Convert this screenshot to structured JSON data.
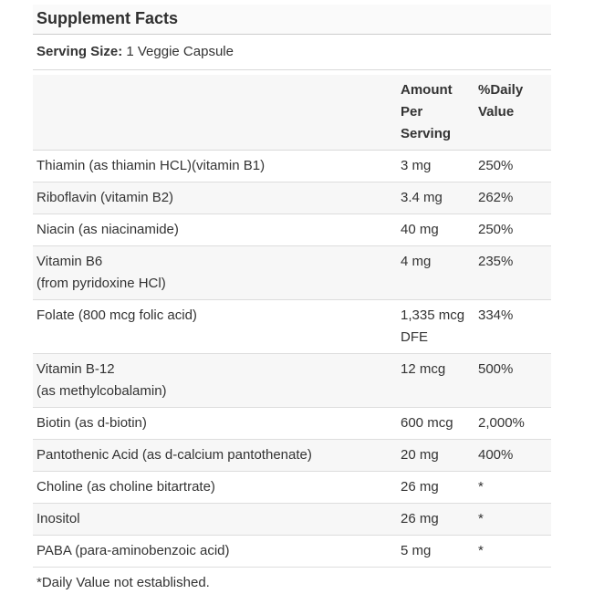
{
  "label": {
    "title": "Supplement Facts",
    "serving": {
      "label": "Serving Size:",
      "value": "1 Veggie Capsule"
    },
    "columns": {
      "amount": "Amount Per Serving",
      "daily_value": "%Daily Value"
    },
    "rows": [
      {
        "name": "Thiamin (as thiamin HCL)(vitamin B1)",
        "sub": "",
        "amount": "3 mg",
        "dv": "250%"
      },
      {
        "name": "Riboflavin (vitamin B2)",
        "sub": "",
        "amount": "3.4 mg",
        "dv": "262%"
      },
      {
        "name": "Niacin (as niacinamide)",
        "sub": "",
        "amount": "40 mg",
        "dv": "250%"
      },
      {
        "name": "Vitamin B6",
        "sub": "(from pyridoxine HCl)",
        "amount": "4 mg",
        "dv": "235%"
      },
      {
        "name": "Folate (800 mcg folic acid)",
        "sub": "",
        "amount": "1,335 mcg DFE",
        "dv": "334%"
      },
      {
        "name": "Vitamin B-12",
        "sub": "(as methylcobalamin)",
        "amount": "12 mcg",
        "dv": "500%"
      },
      {
        "name": "Biotin (as d-biotin)",
        "sub": "",
        "amount": "600 mcg",
        "dv": "2,000%"
      },
      {
        "name": "Pantothenic Acid (as d-calcium pantothenate)",
        "sub": "",
        "amount": "20 mg",
        "dv": "400%"
      },
      {
        "name": "Choline (as choline bitartrate)",
        "sub": "",
        "amount": "26 mg",
        "dv": "*"
      },
      {
        "name": "Inositol",
        "sub": "",
        "amount": "26 mg",
        "dv": "*"
      },
      {
        "name": "PABA (para-aminobenzoic acid)",
        "sub": "",
        "amount": "5 mg",
        "dv": "*"
      }
    ],
    "footnote": "*Daily Value not established.",
    "colors": {
      "text": "#333333",
      "title_bg": "#fafafa",
      "row_alt_bg": "#f7f7f7",
      "border": "#d9d9d9"
    }
  }
}
